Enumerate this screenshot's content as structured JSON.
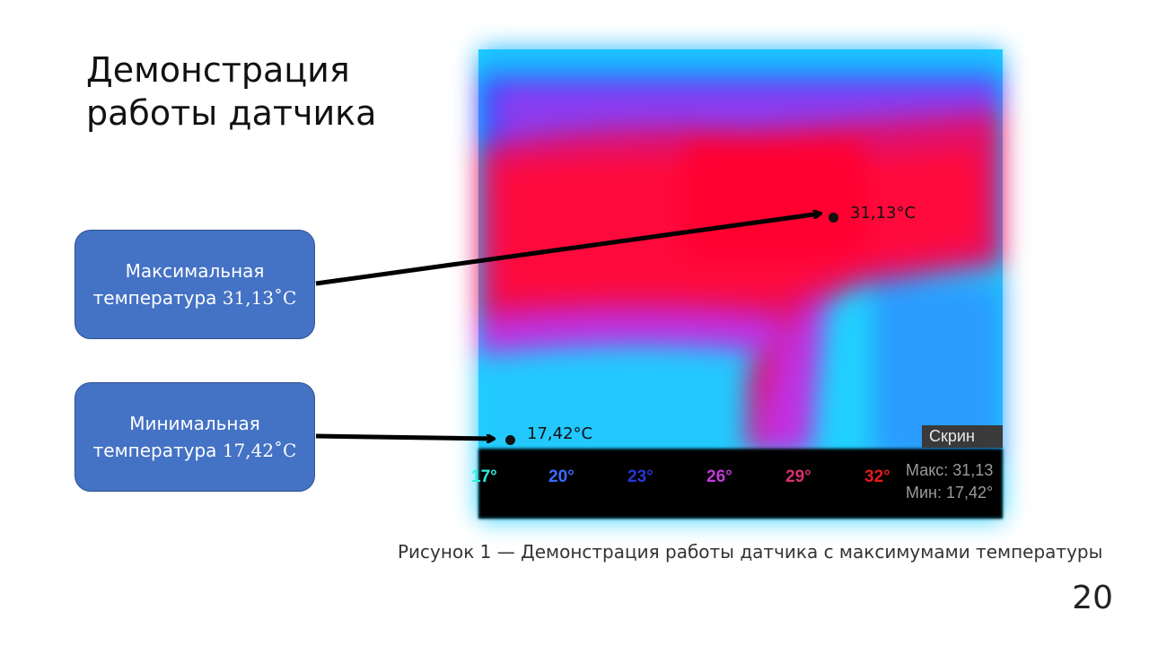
{
  "slide": {
    "title": "Демонстрация\nработы датчика",
    "page_number": "20",
    "caption": "Рисунок 1 — Демонстрация работы датчика с максимумами температуры"
  },
  "callouts": {
    "max": {
      "label": "Максимальная",
      "value_prefix": "температура ",
      "value": "31,13˚C"
    },
    "min": {
      "label": "Минимальная",
      "value_prefix": "температура ",
      "value": "17,42˚C"
    }
  },
  "thermal_image": {
    "max_point_label": "31,13°C",
    "min_point_label": "17,42°C",
    "screen_button": "Скрин",
    "scale": [
      {
        "label": "17°",
        "color": "#30f0e0"
      },
      {
        "label": "20°",
        "color": "#3a6cff"
      },
      {
        "label": "23°",
        "color": "#2a36d8"
      },
      {
        "label": "26°",
        "color": "#c23ad8"
      },
      {
        "label": "29°",
        "color": "#d8306e"
      },
      {
        "label": "32°",
        "color": "#e81a1a"
      }
    ],
    "max_stat": "Макс: 31,13",
    "min_stat": "Мин: 17,42°",
    "colors": {
      "cold": "#20d0ff",
      "mid": "#3a4cff",
      "warm": "#e0106e",
      "hot": "#ff0a3c"
    }
  }
}
